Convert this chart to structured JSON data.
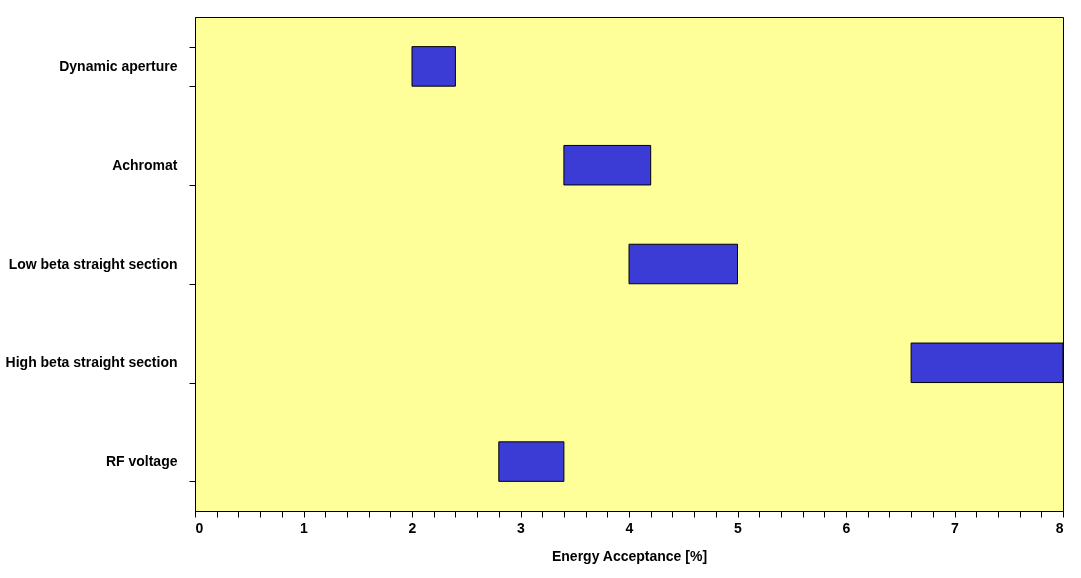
{
  "chart_data": {
    "type": "bar",
    "orientation": "horizontal",
    "xlabel": "Energy Acceptance [%]",
    "categories": [
      "Dynamic aperture",
      "Achromat",
      "Low beta straight section",
      "High beta straight section",
      "RF voltage"
    ],
    "base": [
      2.0,
      3.4,
      4.0,
      6.6,
      2.8
    ],
    "values": [
      0.4,
      0.8,
      1.0,
      1.4,
      0.6
    ],
    "color": "#3b3bd6",
    "xlim": [
      0,
      8
    ],
    "xticks": [
      0,
      {
        "value": 0.2,
        "label": null
      },
      {
        "value": 0.4,
        "label": null
      },
      {
        "value": 0.6,
        "label": null
      },
      {
        "value": 0.8,
        "label": null
      },
      1,
      {
        "value": 1.2,
        "label": null
      },
      {
        "value": 1.4,
        "label": null
      },
      {
        "value": 1.6,
        "label": null
      },
      {
        "value": 1.8,
        "label": null
      },
      2,
      {
        "value": 2.2,
        "label": null
      },
      {
        "value": 2.4,
        "label": null
      },
      {
        "value": 2.6,
        "label": null
      },
      {
        "value": 2.8,
        "label": null
      },
      3,
      {
        "value": 3.2,
        "label": null
      },
      {
        "value": 3.4,
        "label": null
      },
      {
        "value": 3.6,
        "label": null
      },
      {
        "value": 3.8,
        "label": null
      },
      4,
      {
        "value": 4.2,
        "label": null
      },
      {
        "value": 4.4,
        "label": null
      },
      {
        "value": 4.6,
        "label": null
      },
      {
        "value": 4.8,
        "label": null
      },
      5,
      {
        "value": 5.2,
        "label": null
      },
      {
        "value": 5.4,
        "label": null
      },
      {
        "value": 5.6,
        "label": null
      },
      {
        "value": 5.8,
        "label": null
      },
      6,
      {
        "value": 6.2,
        "label": null
      },
      {
        "value": 6.4,
        "label": null
      },
      {
        "value": 6.6,
        "label": null
      },
      {
        "value": 6.8,
        "label": null
      },
      7,
      {
        "value": 7.2,
        "label": null
      },
      {
        "value": 7.4,
        "label": null
      },
      {
        "value": 7.6,
        "label": null
      },
      {
        "value": 7.8,
        "label": null
      },
      8
    ],
    "grid": false
  }
}
